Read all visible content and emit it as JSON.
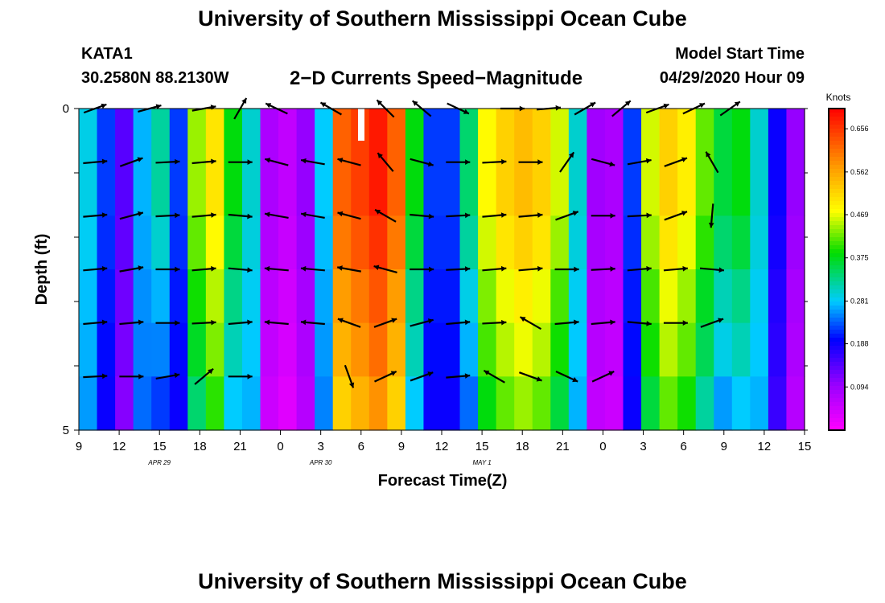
{
  "header": {
    "title": "University of Southern Mississippi Ocean Cube",
    "station": "KATA1",
    "coordinates": "30.2580N 88.2130W",
    "plot_title": "2−D Currents Speed−Magnitude",
    "model_start_label": "Model Start Time",
    "model_start_value": "04/29/2020 Hour 09"
  },
  "footer": {
    "title": "University of Southern Mississippi Ocean Cube"
  },
  "chart_data": {
    "type": "heatmap",
    "title": "2-D Currents Speed-Magnitude",
    "xlabel": "Forecast Time(Z)",
    "ylabel": "Depth (ft)",
    "x_tick_labels": [
      "9",
      "12",
      "15",
      "18",
      "21",
      "0",
      "3",
      "6",
      "9",
      "12",
      "15",
      "18",
      "21",
      "0",
      "3",
      "6",
      "9",
      "12",
      "15"
    ],
    "date_labels": [
      {
        "text": "APR 29",
        "at_tick": 4
      },
      {
        "text": "APR 30",
        "at_tick": 12
      },
      {
        "text": "MAY 1",
        "at_tick": 20
      }
    ],
    "y_tick_labels": [
      {
        "label": "0",
        "depth": 0
      },
      {
        "label": "5",
        "depth": 5
      }
    ],
    "depth_range": [
      0,
      5
    ],
    "time_hours_range": [
      0,
      54
    ],
    "colorbar": {
      "unit_label": "Knots",
      "ticks": [
        "0.656",
        "0.562",
        "0.469",
        "0.375",
        "0.281",
        "0.188",
        "0.094"
      ],
      "range": [
        0,
        0.7
      ]
    },
    "speed_by_time_column": [
      0.29,
      0.22,
      0.14,
      0.27,
      0.32,
      0.22,
      0.44,
      0.5,
      0.38,
      0.3,
      0.08,
      0.06,
      0.1,
      0.28,
      0.62,
      0.65,
      0.68,
      0.62,
      0.38,
      0.22,
      0.22,
      0.34,
      0.48,
      0.52,
      0.54,
      0.52,
      0.46,
      0.3,
      0.09,
      0.08,
      0.22,
      0.46,
      0.52,
      0.49,
      0.42,
      0.36,
      0.38,
      0.3,
      0.19,
      0.1
    ],
    "speed_depth_adjust": [
      0.0,
      0.0,
      -0.02,
      -0.05,
      -0.07,
      -0.1
    ],
    "arrows": [
      {
        "col": 0,
        "row": 0,
        "angle": -20
      },
      {
        "col": 3,
        "row": 0,
        "angle": -15
      },
      {
        "col": 6,
        "row": 0,
        "angle": -10
      },
      {
        "col": 8,
        "row": 0,
        "angle": -60
      },
      {
        "col": 10,
        "row": 0,
        "angle": -155
      },
      {
        "col": 13,
        "row": 0,
        "angle": -150
      },
      {
        "col": 16,
        "row": 0,
        "angle": -135
      },
      {
        "col": 18,
        "row": 0,
        "angle": -140
      },
      {
        "col": 20,
        "row": 0,
        "angle": 25
      },
      {
        "col": 23,
        "row": 0,
        "angle": 0
      },
      {
        "col": 25,
        "row": 0,
        "angle": -5
      },
      {
        "col": 27,
        "row": 0,
        "angle": -30
      },
      {
        "col": 29,
        "row": 0,
        "angle": -40
      },
      {
        "col": 31,
        "row": 0,
        "angle": -20
      },
      {
        "col": 33,
        "row": 0,
        "angle": -25
      },
      {
        "col": 35,
        "row": 0,
        "angle": -35
      },
      {
        "col": 0,
        "row": 1,
        "angle": -5
      },
      {
        "col": 2,
        "row": 1,
        "angle": -20
      },
      {
        "col": 4,
        "row": 1,
        "angle": -3
      },
      {
        "col": 6,
        "row": 1,
        "angle": -5
      },
      {
        "col": 8,
        "row": 1,
        "angle": 0
      },
      {
        "col": 10,
        "row": 1,
        "angle": -165
      },
      {
        "col": 12,
        "row": 1,
        "angle": -170
      },
      {
        "col": 14,
        "row": 1,
        "angle": -165
      },
      {
        "col": 16,
        "row": 1,
        "angle": -130
      },
      {
        "col": 18,
        "row": 1,
        "angle": 15
      },
      {
        "col": 20,
        "row": 1,
        "angle": 0
      },
      {
        "col": 22,
        "row": 1,
        "angle": -3
      },
      {
        "col": 24,
        "row": 1,
        "angle": 0
      },
      {
        "col": 26,
        "row": 1,
        "angle": -55
      },
      {
        "col": 28,
        "row": 1,
        "angle": 15
      },
      {
        "col": 30,
        "row": 1,
        "angle": -10
      },
      {
        "col": 32,
        "row": 1,
        "angle": -20
      },
      {
        "col": 34,
        "row": 1,
        "angle": -120
      },
      {
        "col": 0,
        "row": 2,
        "angle": -5
      },
      {
        "col": 2,
        "row": 2,
        "angle": -15
      },
      {
        "col": 4,
        "row": 2,
        "angle": -3
      },
      {
        "col": 6,
        "row": 2,
        "angle": -5
      },
      {
        "col": 8,
        "row": 2,
        "angle": 5
      },
      {
        "col": 10,
        "row": 2,
        "angle": -170
      },
      {
        "col": 12,
        "row": 2,
        "angle": -170
      },
      {
        "col": 14,
        "row": 2,
        "angle": -165
      },
      {
        "col": 16,
        "row": 2,
        "angle": -150
      },
      {
        "col": 18,
        "row": 2,
        "angle": 5
      },
      {
        "col": 20,
        "row": 2,
        "angle": -3
      },
      {
        "col": 22,
        "row": 2,
        "angle": -5
      },
      {
        "col": 24,
        "row": 2,
        "angle": -5
      },
      {
        "col": 26,
        "row": 2,
        "angle": -20
      },
      {
        "col": 28,
        "row": 2,
        "angle": 0
      },
      {
        "col": 30,
        "row": 2,
        "angle": -3
      },
      {
        "col": 32,
        "row": 2,
        "angle": -20
      },
      {
        "col": 34,
        "row": 2,
        "angle": 95
      },
      {
        "col": 0,
        "row": 3,
        "angle": -5
      },
      {
        "col": 2,
        "row": 3,
        "angle": -10
      },
      {
        "col": 4,
        "row": 3,
        "angle": 0
      },
      {
        "col": 6,
        "row": 3,
        "angle": -5
      },
      {
        "col": 8,
        "row": 3,
        "angle": 5
      },
      {
        "col": 10,
        "row": 3,
        "angle": -175
      },
      {
        "col": 12,
        "row": 3,
        "angle": -175
      },
      {
        "col": 14,
        "row": 3,
        "angle": -170
      },
      {
        "col": 16,
        "row": 3,
        "angle": -165
      },
      {
        "col": 18,
        "row": 3,
        "angle": 0
      },
      {
        "col": 20,
        "row": 3,
        "angle": -3
      },
      {
        "col": 22,
        "row": 3,
        "angle": -5
      },
      {
        "col": 24,
        "row": 3,
        "angle": -5
      },
      {
        "col": 26,
        "row": 3,
        "angle": 0
      },
      {
        "col": 28,
        "row": 3,
        "angle": -3
      },
      {
        "col": 30,
        "row": 3,
        "angle": -5
      },
      {
        "col": 32,
        "row": 3,
        "angle": -5
      },
      {
        "col": 34,
        "row": 3,
        "angle": 5
      },
      {
        "col": 0,
        "row": 4,
        "angle": -5
      },
      {
        "col": 2,
        "row": 4,
        "angle": -5
      },
      {
        "col": 4,
        "row": 4,
        "angle": 0
      },
      {
        "col": 6,
        "row": 4,
        "angle": -3
      },
      {
        "col": 8,
        "row": 4,
        "angle": -5
      },
      {
        "col": 10,
        "row": 4,
        "angle": -175
      },
      {
        "col": 12,
        "row": 4,
        "angle": -175
      },
      {
        "col": 14,
        "row": 4,
        "angle": -160
      },
      {
        "col": 16,
        "row": 4,
        "angle": -20
      },
      {
        "col": 18,
        "row": 4,
        "angle": -15
      },
      {
        "col": 20,
        "row": 4,
        "angle": -5
      },
      {
        "col": 22,
        "row": 4,
        "angle": -3
      },
      {
        "col": 24,
        "row": 4,
        "angle": -150
      },
      {
        "col": 26,
        "row": 4,
        "angle": -5
      },
      {
        "col": 28,
        "row": 4,
        "angle": -5
      },
      {
        "col": 30,
        "row": 4,
        "angle": 5
      },
      {
        "col": 32,
        "row": 4,
        "angle": 0
      },
      {
        "col": 34,
        "row": 4,
        "angle": -20
      },
      {
        "col": 0,
        "row": 5,
        "angle": -3
      },
      {
        "col": 2,
        "row": 5,
        "angle": 0
      },
      {
        "col": 4,
        "row": 5,
        "angle": -10
      },
      {
        "col": 6,
        "row": 5,
        "angle": -40
      },
      {
        "col": 8,
        "row": 5,
        "angle": 0
      },
      {
        "col": 14,
        "row": 5,
        "angle": 70
      },
      {
        "col": 16,
        "row": 5,
        "angle": -25
      },
      {
        "col": 18,
        "row": 5,
        "angle": -20
      },
      {
        "col": 20,
        "row": 5,
        "angle": -5
      },
      {
        "col": 22,
        "row": 5,
        "angle": -150
      },
      {
        "col": 24,
        "row": 5,
        "angle": 20
      },
      {
        "col": 26,
        "row": 5,
        "angle": 25
      },
      {
        "col": 28,
        "row": 5,
        "angle": -25
      }
    ]
  }
}
